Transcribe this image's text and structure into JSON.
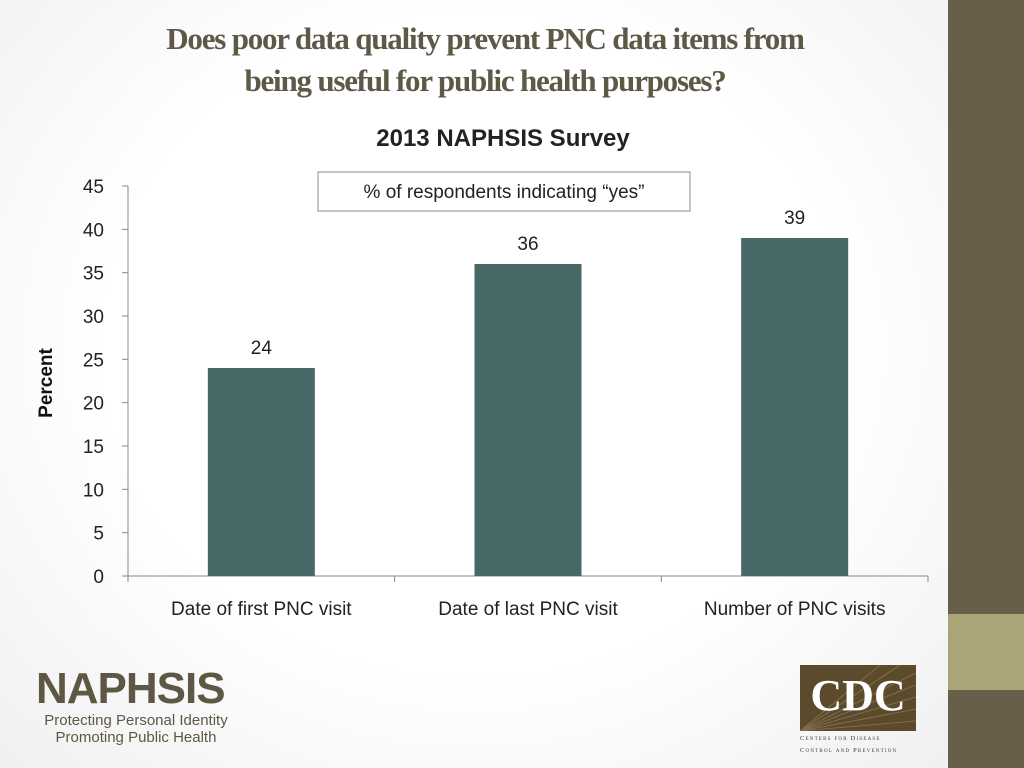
{
  "slide": {
    "title_line1": "Does poor data quality prevent PNC data items from",
    "title_line2": "being useful for public health purposes?"
  },
  "chart_data": {
    "type": "bar",
    "title": "2013 NAPHSIS Survey",
    "categories": [
      "Date of first PNC visit",
      "Date of last PNC visit",
      "Number of PNC visits"
    ],
    "values": [
      24,
      36,
      39
    ],
    "data_labels": [
      "24",
      "36",
      "39"
    ],
    "ylabel": "Percent",
    "xlabel": "",
    "ylim": [
      0,
      45
    ],
    "yticks": [
      0,
      5,
      10,
      15,
      20,
      25,
      30,
      35,
      40,
      45
    ],
    "annotation": "% of respondents indicating “yes”",
    "bar_color": "#466866",
    "grid": false
  },
  "logos": {
    "naphsis_name": "NAPHSIS",
    "naphsis_tagline1": "Protecting Personal Identity",
    "naphsis_tagline2": "Promoting Public Health",
    "cdc_name": "CDC",
    "cdc_sub1": "Centers for Disease",
    "cdc_sub2": "Control and Prevention"
  },
  "colors": {
    "title": "#5e5947",
    "side_strip": "#675f49",
    "side_accent": "#aba478"
  }
}
